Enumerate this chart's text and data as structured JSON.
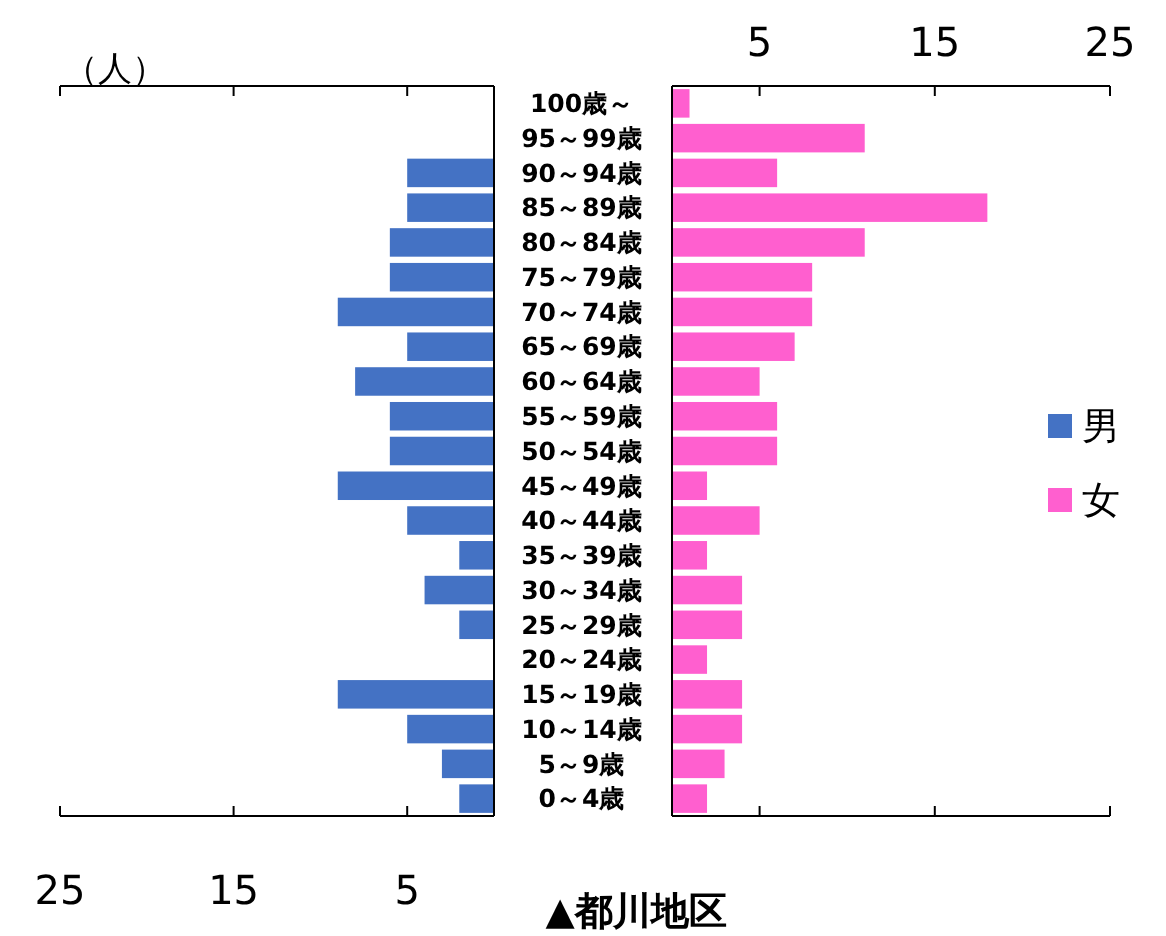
{
  "chart_data": [
    {
      "type": "bar",
      "orientation": "horizontal",
      "annotations": [
        "（人）"
      ],
      "categories": [
        "100歳～",
        "95～99歳",
        "90～94歳",
        "85～89歳",
        "80～84歳",
        "75～79歳",
        "70～74歳",
        "65～69歳",
        "60～64歳",
        "55～59歳",
        "50～54歳",
        "45～49歳",
        "40～44歳",
        "35～39歳",
        "30～34歳",
        "25～29歳",
        "20～24歳",
        "15～19歳",
        "10～14歳",
        "5～9歳",
        "0～4歳"
      ],
      "series": [
        {
          "name": "男",
          "color": "#4472c4",
          "values": [
            0,
            0,
            5,
            5,
            6,
            6,
            9,
            5,
            8,
            6,
            6,
            9,
            5,
            2,
            4,
            2,
            0,
            9,
            5,
            3,
            2
          ]
        }
      ],
      "xlim": [
        25,
        0
      ],
      "xticks": [
        25,
        15,
        5
      ],
      "legend": "right"
    },
    {
      "type": "bar",
      "orientation": "horizontal",
      "title": "▲都川地区",
      "categories": [
        null,
        null,
        null,
        null,
        null,
        null,
        null,
        null,
        null,
        null,
        null,
        null,
        null,
        null,
        null,
        null,
        null,
        null,
        null,
        null,
        null
      ],
      "series": [
        {
          "name": "女",
          "color": "#ff5fcf",
          "values": [
            1,
            11,
            6,
            18,
            11,
            8,
            8,
            7,
            5,
            6,
            6,
            2,
            5,
            2,
            4,
            4,
            2,
            4,
            4,
            3,
            2
          ]
        }
      ],
      "xlim": [
        0,
        25
      ],
      "xticks": [
        5,
        15,
        25
      ],
      "legend": "right"
    }
  ]
}
